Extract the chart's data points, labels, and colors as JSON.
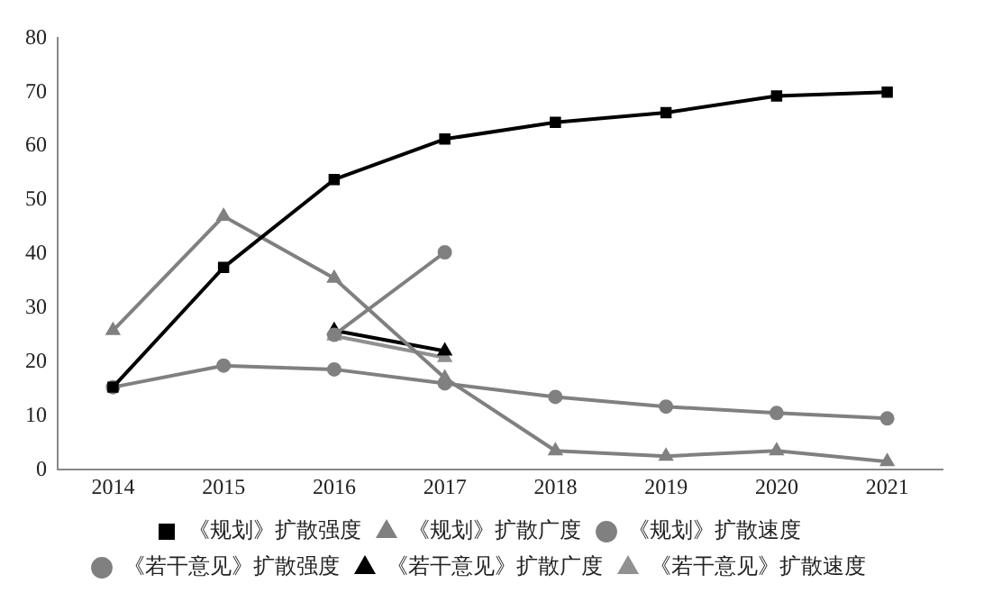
{
  "chart_data": {
    "type": "line",
    "categories": [
      "2014",
      "2015",
      "2016",
      "2017",
      "2018",
      "2019",
      "2020",
      "2021"
    ],
    "ylim": [
      0,
      80
    ],
    "yticks": [
      0,
      10,
      20,
      30,
      40,
      50,
      60,
      70,
      80
    ],
    "grid": false,
    "legend": "bottom",
    "series": [
      {
        "name": "《规划》扩散强度",
        "color": "#000000",
        "marker": "square",
        "values": [
          15.3,
          37.5,
          53.8,
          61.3,
          64.4,
          66.2,
          69.3,
          70
        ]
      },
      {
        "name": "《规划》扩散广度",
        "color": "#808080",
        "marker": "triangle",
        "values": [
          25.8,
          47,
          35.5,
          17,
          3.5,
          2.5,
          3.5,
          1.5
        ]
      },
      {
        "name": "《规划》扩散速度",
        "color": "#808080",
        "marker": "circle",
        "values": [
          15.3,
          19.3,
          18.6,
          16,
          13.5,
          11.7,
          10.5,
          9.5
        ]
      },
      {
        "name": "《若干意见》扩散强度",
        "color": "#808080",
        "marker": "circle",
        "values": [
          null,
          null,
          25,
          40.3,
          null,
          null,
          null,
          null
        ]
      },
      {
        "name": "《若干意见》扩散广度",
        "color": "#000000",
        "marker": "triangle",
        "values": [
          null,
          null,
          25.8,
          22,
          null,
          null,
          null,
          null
        ]
      },
      {
        "name": "《若干意见》扩散速度",
        "color": "#909090",
        "marker": "triangle",
        "values": [
          null,
          null,
          24.8,
          20.8,
          null,
          null,
          null,
          null
        ]
      }
    ]
  }
}
